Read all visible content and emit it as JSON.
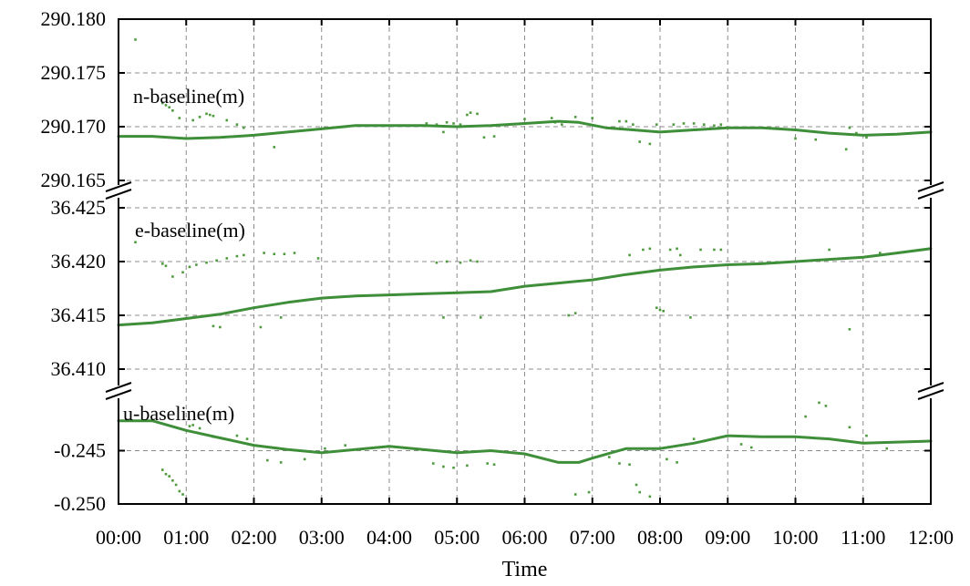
{
  "chart_data": {
    "type": "scatter",
    "xlabel": "Time",
    "x_ticks": [
      "00:00",
      "01:00",
      "02:00",
      "03:00",
      "04:00",
      "05:00",
      "06:00",
      "07:00",
      "08:00",
      "09:00",
      "10:00",
      "11:00",
      "12:00"
    ],
    "xlim": [
      0,
      12
    ],
    "grid": true,
    "color": "#3f8f3a",
    "panels": [
      {
        "label": "n-baseline(m)",
        "ylim": [
          290.165,
          290.18
        ],
        "y_ticks": [
          "290.180",
          "290.175",
          "290.170",
          "290.165"
        ],
        "series": {
          "x": [
            0,
            0.5,
            1.0,
            1.5,
            2.0,
            2.5,
            3.0,
            3.5,
            4.0,
            4.5,
            5.0,
            5.5,
            6.0,
            6.5,
            6.8,
            7.2,
            7.6,
            8.0,
            8.5,
            9.0,
            9.5,
            10.0,
            10.5,
            11.0,
            11.5,
            12.0
          ],
          "y": [
            290.1691,
            290.1691,
            290.1689,
            290.169,
            290.1692,
            290.1695,
            290.1698,
            290.1701,
            290.1701,
            290.1701,
            290.17,
            290.1701,
            290.1703,
            290.1705,
            290.1704,
            290.1699,
            290.1697,
            290.1695,
            290.1697,
            290.1699,
            290.1699,
            290.1697,
            290.1694,
            290.1692,
            290.1693,
            290.1695
          ]
        },
        "outliers": {
          "x": [
            0.25,
            0.65,
            0.7,
            0.75,
            0.8,
            0.9,
            1.1,
            1.2,
            1.3,
            1.35,
            1.4,
            1.6,
            1.75,
            1.85,
            2.3,
            4.55,
            4.7,
            4.85,
            4.95,
            5.05,
            5.15,
            5.2,
            5.3,
            4.8,
            5.4,
            5.55,
            6.0,
            6.4,
            6.45,
            6.55,
            6.75,
            7.0,
            7.4,
            7.5,
            7.6,
            7.7,
            7.85,
            7.95,
            8.2,
            8.35,
            8.5,
            8.65,
            8.8,
            8.9,
            10.0,
            10.3,
            10.8,
            10.9,
            11.05,
            10.75
          ],
          "y": [
            290.1781,
            290.1722,
            290.172,
            290.1718,
            290.1715,
            290.1708,
            290.1706,
            290.1709,
            290.1712,
            290.1711,
            290.171,
            290.1706,
            290.1702,
            290.1699,
            290.1681,
            290.1703,
            290.1702,
            290.1704,
            290.1703,
            290.1702,
            290.1711,
            290.1713,
            290.1712,
            290.1695,
            290.169,
            290.1691,
            290.1707,
            290.1708,
            290.1704,
            290.1702,
            290.1709,
            290.1708,
            290.1705,
            290.1705,
            290.1702,
            290.1686,
            290.1684,
            290.1702,
            290.1702,
            290.1703,
            290.1703,
            290.1702,
            290.1701,
            290.1702,
            290.1689,
            290.1688,
            290.1699,
            290.1694,
            290.169,
            290.1679
          ]
        }
      },
      {
        "label": "e-baseline(m)",
        "ylim": [
          36.41,
          36.425
        ],
        "y_ticks": [
          "36.425",
          "36.420",
          "36.415",
          "36.410"
        ],
        "series": {
          "x": [
            0,
            0.5,
            1.0,
            1.5,
            2.0,
            2.5,
            3.0,
            3.5,
            4.0,
            4.5,
            5.0,
            5.5,
            6.0,
            6.5,
            7.0,
            7.5,
            8.0,
            8.5,
            9.0,
            9.5,
            10.0,
            10.5,
            11.0,
            11.5,
            12.0
          ],
          "y": [
            36.4141,
            36.4143,
            36.4147,
            36.4151,
            36.4157,
            36.4162,
            36.4166,
            36.4168,
            36.4169,
            36.417,
            36.4171,
            36.4172,
            36.4177,
            36.418,
            36.4183,
            36.4188,
            36.4192,
            36.4195,
            36.4197,
            36.4198,
            36.42,
            36.4202,
            36.4204,
            36.4208,
            36.4212
          ]
        },
        "outliers": {
          "x": [
            0.25,
            0.65,
            0.7,
            0.8,
            0.95,
            1.05,
            1.15,
            1.3,
            1.45,
            1.6,
            1.75,
            1.85,
            2.15,
            2.3,
            2.45,
            2.6,
            2.95,
            4.7,
            4.85,
            5.05,
            5.2,
            5.3,
            4.8,
            5.35,
            1.4,
            1.5,
            2.1,
            2.4,
            6.65,
            6.75,
            8.3,
            8.6,
            8.8,
            8.9,
            7.55,
            7.75,
            7.85,
            8.15,
            8.25,
            7.95,
            8.0,
            8.05,
            10.8,
            11.25,
            10.5,
            8.45
          ],
          "y": [
            36.4218,
            36.4198,
            36.4196,
            36.4186,
            36.419,
            36.4195,
            36.4197,
            36.4199,
            36.4201,
            36.4203,
            36.4205,
            36.4206,
            36.4208,
            36.4207,
            36.4207,
            36.4208,
            36.4203,
            36.4199,
            36.42,
            36.4199,
            36.4201,
            36.42,
            36.4148,
            36.4148,
            36.414,
            36.4139,
            36.4139,
            36.4148,
            36.415,
            36.4152,
            36.4206,
            36.4211,
            36.4211,
            36.4211,
            36.4206,
            36.4211,
            36.4212,
            36.4211,
            36.4212,
            36.4157,
            36.4155,
            36.4154,
            36.4137,
            36.4208,
            36.4211,
            36.4148
          ]
        }
      },
      {
        "label": "u-baseline(m)",
        "ylim": [
          -0.25,
          -0.24
        ],
        "y_ticks": [
          "-0.245",
          "-0.250"
        ],
        "series": {
          "x": [
            0,
            0.5,
            1.0,
            1.5,
            2.0,
            2.5,
            3.0,
            3.5,
            4.0,
            4.5,
            5.0,
            5.5,
            6.0,
            6.5,
            6.8,
            7.0,
            7.5,
            8.0,
            8.5,
            9.0,
            9.5,
            10.0,
            10.5,
            11.0,
            11.5,
            12.0
          ],
          "y": [
            -0.2422,
            -0.2422,
            -0.2431,
            -0.2438,
            -0.2445,
            -0.2449,
            -0.2452,
            -0.2449,
            -0.2446,
            -0.2449,
            -0.2452,
            -0.245,
            -0.2453,
            -0.2461,
            -0.2461,
            -0.2457,
            -0.2448,
            -0.2448,
            -0.2443,
            -0.2436,
            -0.2437,
            -0.2437,
            -0.2439,
            -0.2443,
            -0.2442,
            -0.2441
          ]
        },
        "outliers": {
          "x": [
            0.65,
            0.7,
            0.75,
            0.8,
            0.85,
            0.9,
            0.95,
            1.05,
            1.2,
            1.4,
            1.75,
            1.9,
            2.2,
            2.4,
            2.75,
            3.05,
            3.35,
            4.65,
            4.8,
            4.95,
            5.15,
            5.45,
            5.55,
            6.75,
            6.95,
            7.25,
            7.4,
            7.55,
            7.65,
            7.7,
            7.85,
            8.1,
            8.25,
            8.5,
            8.65,
            9.2,
            9.35,
            10.15,
            10.35,
            10.45,
            11.05,
            10.8,
            11.35,
            1.1
          ],
          "y": [
            -0.2468,
            -0.2472,
            -0.2474,
            -0.2478,
            -0.2482,
            -0.2488,
            -0.2491,
            -0.2427,
            -0.2429,
            -0.2437,
            -0.2436,
            -0.2439,
            -0.2459,
            -0.2461,
            -0.2458,
            -0.2448,
            -0.2445,
            -0.2462,
            -0.2465,
            -0.2466,
            -0.2464,
            -0.2462,
            -0.2463,
            -0.2491,
            -0.2489,
            -0.2456,
            -0.2462,
            -0.2463,
            -0.2482,
            -0.2489,
            -0.2493,
            -0.2458,
            -0.2461,
            -0.2439,
            -0.2441,
            -0.2444,
            -0.2447,
            -0.2418,
            -0.2405,
            -0.2408,
            -0.2436,
            -0.2428,
            -0.2448,
            -0.2426
          ]
        }
      }
    ]
  }
}
